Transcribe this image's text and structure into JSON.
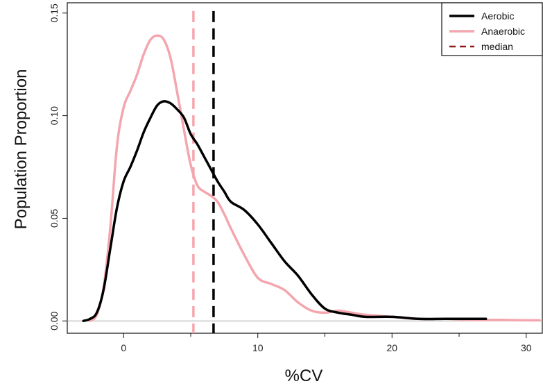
{
  "chart_data": {
    "type": "line",
    "title": "",
    "xlabel": "%CV",
    "ylabel": "Population Proportion",
    "xlim": [
      -4.2,
      31.2
    ],
    "ylim": [
      -0.006,
      0.155
    ],
    "x_ticks": [
      0,
      10,
      20,
      30
    ],
    "x_tick_labels": [
      "0",
      "10",
      "20",
      "30"
    ],
    "y_ticks": [
      0.0,
      0.05,
      0.1,
      0.15
    ],
    "y_tick_labels": [
      "0.00",
      "0.05",
      "0.10",
      "0.15"
    ],
    "grid": false,
    "baseline": 0,
    "legend_position": "top-right",
    "legend": [
      {
        "label": "Aerobic",
        "color": "#000000",
        "style": "solid"
      },
      {
        "label": "Anaerobic",
        "color": "#f4a6ae",
        "style": "solid"
      },
      {
        "label": "median",
        "color": "#8b1a1a",
        "style": "dashed"
      }
    ],
    "series": [
      {
        "name": "Aerobic",
        "color": "#000000",
        "x": [
          -3,
          -2.5,
          -2,
          -1.5,
          -1,
          -0.5,
          0,
          0.5,
          1,
          1.5,
          2,
          2.5,
          3,
          3.5,
          4,
          4.5,
          5,
          5.5,
          6,
          6.5,
          7,
          7.5,
          8,
          9,
          10,
          11,
          12,
          13,
          14,
          15,
          16,
          17,
          18,
          20,
          22,
          24,
          26,
          27
        ],
        "values": [
          0.0,
          0.001,
          0.004,
          0.015,
          0.035,
          0.055,
          0.068,
          0.075,
          0.083,
          0.092,
          0.099,
          0.105,
          0.107,
          0.106,
          0.103,
          0.099,
          0.091,
          0.086,
          0.08,
          0.074,
          0.068,
          0.063,
          0.058,
          0.054,
          0.047,
          0.038,
          0.029,
          0.022,
          0.013,
          0.006,
          0.004,
          0.003,
          0.002,
          0.002,
          0.001,
          0.001,
          0.001,
          0.001
        ]
      },
      {
        "name": "Anaerobic",
        "color": "#f4a6ae",
        "x": [
          -2.5,
          -2,
          -1.5,
          -1,
          -0.5,
          0,
          0.5,
          1,
          1.5,
          2,
          2.5,
          3,
          3.5,
          4,
          4.5,
          5,
          5.5,
          6,
          6.5,
          7,
          7.5,
          8,
          9,
          10,
          11,
          12,
          13,
          14,
          15,
          16,
          17,
          18,
          20,
          22,
          24,
          26,
          28,
          30,
          31
        ],
        "values": [
          0.0,
          0.003,
          0.016,
          0.045,
          0.085,
          0.104,
          0.112,
          0.12,
          0.13,
          0.137,
          0.139,
          0.137,
          0.128,
          0.111,
          0.093,
          0.076,
          0.066,
          0.063,
          0.061,
          0.058,
          0.052,
          0.045,
          0.032,
          0.021,
          0.018,
          0.015,
          0.009,
          0.005,
          0.004,
          0.005,
          0.004,
          0.003,
          0.002,
          0.001,
          0.001,
          0.0005,
          0.0005,
          0.0003,
          0.0003
        ]
      }
    ],
    "medians": [
      {
        "series": "Aerobic",
        "x": 6.7,
        "color": "#000000",
        "style": "dashed"
      },
      {
        "series": "Anaerobic",
        "x": 5.2,
        "color": "#f4a6ae",
        "style": "dashed"
      }
    ]
  }
}
